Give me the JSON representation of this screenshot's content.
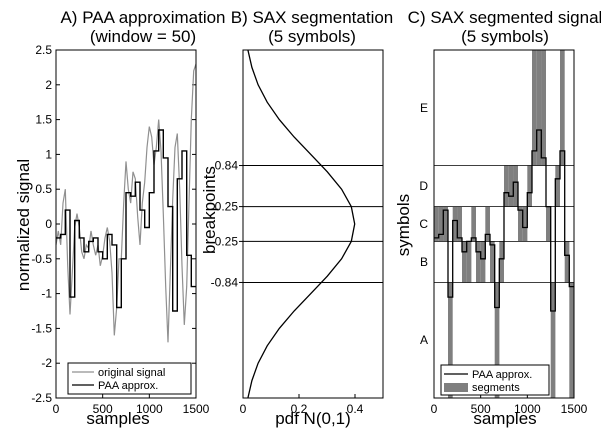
{
  "chart_data": [
    {
      "type": "line",
      "title": "A) PAA approximation",
      "subtitle": "(window = 50)",
      "xlabel": "samples",
      "ylabel": "normalized signal",
      "xlim": [
        0,
        1500
      ],
      "ylim": [
        -2.5,
        2.5
      ],
      "xticks": [
        0,
        500,
        1000,
        1500
      ],
      "yticks": [
        -2.5,
        -2,
        -1.5,
        -1,
        -0.5,
        0,
        0.5,
        1,
        1.5,
        2,
        2.5
      ],
      "legend_position": "bottom-right",
      "series": [
        {
          "name": "original signal",
          "color": "#909090",
          "x": [
            0,
            25,
            50,
            75,
            100,
            125,
            150,
            175,
            200,
            225,
            250,
            275,
            300,
            325,
            350,
            375,
            400,
            425,
            450,
            475,
            500,
            525,
            550,
            575,
            600,
            625,
            650,
            675,
            700,
            725,
            750,
            775,
            800,
            825,
            850,
            875,
            900,
            925,
            950,
            975,
            1000,
            1025,
            1050,
            1075,
            1100,
            1125,
            1150,
            1175,
            1200,
            1225,
            1250,
            1275,
            1300,
            1325,
            1350,
            1375,
            1400,
            1425,
            1450,
            1475,
            1500
          ],
          "values": [
            -0.3,
            -0.1,
            -0.3,
            0.3,
            0.5,
            -0.6,
            -1.3,
            -0.7,
            -0.05,
            0.15,
            -0.05,
            -0.4,
            -0.5,
            -0.3,
            -0.35,
            -0.1,
            -0.3,
            -0.45,
            -0.3,
            -0.6,
            -0.45,
            -0.2,
            -0.05,
            -0.25,
            -0.7,
            -1.6,
            -1.2,
            -0.5,
            -0.5,
            0.3,
            0.9,
            0.5,
            0.3,
            0.75,
            0.65,
            0.1,
            -0.3,
            0.3,
            0.6,
            1.1,
            1.4,
            1.25,
            0.85,
            1.1,
            1.5,
            1.05,
            0.15,
            -0.9,
            -1.7,
            -0.7,
            0.35,
            1.1,
            1.3,
            0.5,
            -0.6,
            -1.45,
            -0.9,
            0.3,
            1.5,
            2.2,
            2.3
          ]
        },
        {
          "name": "PAA approx.",
          "color": "#000000",
          "step": true,
          "x": [
            0,
            50,
            100,
            150,
            200,
            250,
            300,
            350,
            400,
            450,
            500,
            550,
            600,
            650,
            700,
            750,
            800,
            850,
            900,
            950,
            1000,
            1050,
            1100,
            1150,
            1200,
            1250,
            1300,
            1350,
            1400,
            1450,
            1500
          ],
          "values": [
            -0.2,
            -0.15,
            0.2,
            -1.05,
            0.05,
            -0.2,
            -0.4,
            -0.25,
            -0.2,
            -0.4,
            -0.5,
            -0.15,
            -0.3,
            -1.2,
            -0.5,
            0.45,
            0.4,
            0.6,
            0.2,
            -0.05,
            0.45,
            1.05,
            1.35,
            0.95,
            0.25,
            -1.25,
            0.65,
            1.05,
            -0.45,
            -0.9,
            1.35
          ]
        }
      ]
    },
    {
      "type": "line",
      "title": "B) SAX segmentation",
      "subtitle": "(5 symbols)",
      "xlabel": "pdf N(0,1)",
      "ylabel": "breakpoints",
      "xlim": [
        0,
        0.5
      ],
      "ylim": [
        -2.5,
        2.5
      ],
      "xticks": [
        0,
        0.2,
        0.4
      ],
      "xtick_labels": [
        "0",
        "0.2",
        "0.4"
      ],
      "breakpoints": [
        0.84,
        0.25,
        -0.25,
        -0.84
      ],
      "breakpoint_labels": [
        "0.84",
        "0.25",
        "-0.25",
        "-0.84"
      ],
      "series": [
        {
          "color": "#000000",
          "curve": "gaussian pdf N(0,1)",
          "y": [
            -2.5,
            -2.25,
            -2,
            -1.75,
            -1.5,
            -1.25,
            -1,
            -0.75,
            -0.5,
            -0.25,
            0,
            0.25,
            0.5,
            0.75,
            1,
            1.25,
            1.5,
            1.75,
            2,
            2.25,
            2.5
          ],
          "values": [
            0.0175,
            0.0317,
            0.054,
            0.0863,
            0.1295,
            0.1826,
            0.242,
            0.3011,
            0.3521,
            0.3867,
            0.3989,
            0.3867,
            0.3521,
            0.3011,
            0.242,
            0.1826,
            0.1295,
            0.0863,
            0.054,
            0.0317,
            0.0175
          ]
        }
      ]
    },
    {
      "type": "bar",
      "title": "C) SAX segmented signal",
      "subtitle": "(5 symbols)",
      "xlabel": "samples",
      "ylabel": "symbols",
      "xlim": [
        0,
        1500
      ],
      "ylim": [
        -2.5,
        2.5
      ],
      "xticks": [
        0,
        500,
        1000,
        1500
      ],
      "breakpoints": [
        0.84,
        0.25,
        -0.25,
        -0.84
      ],
      "symbols": [
        "A",
        "B",
        "C",
        "D",
        "E"
      ],
      "legend_position": "bottom-right",
      "segment_color": "#7f7f7f",
      "series": [
        {
          "name": "PAA approx.",
          "color": "#000000",
          "step": true,
          "x": [
            0,
            50,
            100,
            150,
            200,
            250,
            300,
            350,
            400,
            450,
            500,
            550,
            600,
            650,
            700,
            750,
            800,
            850,
            900,
            950,
            1000,
            1050,
            1100,
            1150,
            1200,
            1250,
            1300,
            1350,
            1400,
            1450,
            1500
          ],
          "values": [
            -0.2,
            -0.15,
            0.2,
            -1.05,
            0.05,
            -0.2,
            -0.4,
            -0.25,
            -0.2,
            -0.4,
            -0.5,
            -0.15,
            -0.3,
            -1.2,
            -0.5,
            0.45,
            0.4,
            0.6,
            0.2,
            -0.05,
            0.45,
            1.05,
            1.35,
            0.95,
            0.25,
            -1.25,
            0.65,
            1.05,
            -0.45,
            -0.9,
            1.35
          ]
        },
        {
          "name": "segments",
          "note_values": "symbol level filled per window",
          "values": [
            -0.2,
            -0.15,
            0.2,
            -1.05,
            0.05,
            -0.2,
            -0.4,
            -0.25,
            -0.2,
            -0.4,
            -0.5,
            -0.15,
            -0.3,
            -1.2,
            -0.5,
            0.45,
            0.4,
            0.6,
            0.2,
            -0.05,
            0.45,
            1.05,
            1.35,
            0.95,
            0.25,
            -1.25,
            0.65,
            1.05,
            -0.45,
            -0.9
          ]
        }
      ]
    }
  ]
}
